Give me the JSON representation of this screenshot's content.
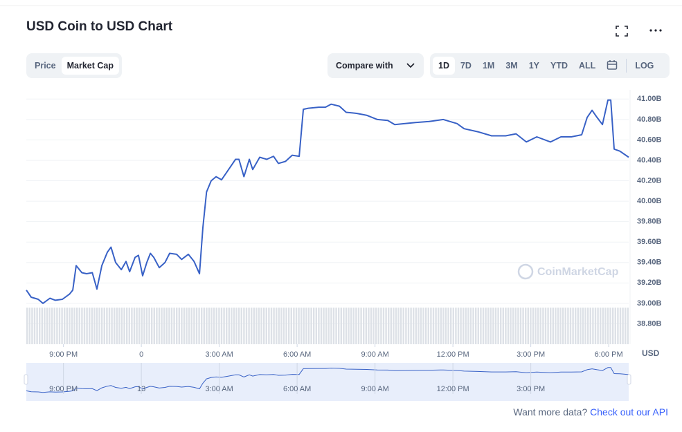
{
  "ui": {
    "tabs": [
      "Price",
      "Market Cap"
    ],
    "compare": "Compare with",
    "ranges": [
      "1D",
      "7D",
      "1M",
      "3M",
      "1Y",
      "YTD",
      "ALL"
    ],
    "log": "LOG",
    "watermark": "CoinMarketCap",
    "footer_text": "Want more data?",
    "footer_link": "Check out our API"
  },
  "chart_data": {
    "type": "line",
    "title": "USD Coin to USD Chart",
    "unit_label": "USD",
    "grid": true,
    "x": [
      -4.43,
      -4.24,
      -3.97,
      -3.79,
      -3.52,
      -3.31,
      -3.04,
      -2.77,
      -2.64,
      -2.51,
      -2.29,
      -2.11,
      -1.89,
      -1.71,
      -1.52,
      -1.31,
      -1.17,
      -0.99,
      -0.77,
      -0.59,
      -0.45,
      -0.24,
      -0.11,
      0.05,
      0.21,
      0.35,
      0.48,
      0.69,
      0.91,
      1.09,
      1.36,
      1.55,
      1.81,
      2.03,
      2.24,
      2.37,
      2.51,
      2.69,
      2.88,
      3.09,
      3.36,
      3.63,
      3.76,
      3.95,
      4.16,
      4.29,
      4.56,
      4.83,
      5.09,
      5.28,
      5.55,
      5.81,
      6.08,
      6.24,
      6.43,
      6.83,
      7.09,
      7.31,
      7.63,
      7.89,
      8.29,
      8.69,
      9.09,
      9.49,
      9.76,
      10.16,
      10.56,
      11.09,
      11.63,
      12.16,
      12.43,
      12.96,
      13.49,
      14.03,
      14.43,
      14.83,
      15.23,
      15.76,
      16.16,
      16.56,
      16.96,
      17.17,
      17.36,
      17.55,
      17.76,
      17.97,
      18.08,
      18.21,
      18.43,
      18.77
    ],
    "series": [
      {
        "name": "Market Cap",
        "color": "#3861c6",
        "values": [
          39.13,
          39.06,
          39.04,
          39.0,
          39.05,
          39.03,
          39.04,
          39.09,
          39.13,
          39.37,
          39.3,
          39.29,
          39.3,
          39.14,
          39.37,
          39.5,
          39.55,
          39.4,
          39.33,
          39.41,
          39.31,
          39.45,
          39.47,
          39.27,
          39.4,
          39.49,
          39.45,
          39.35,
          39.4,
          39.49,
          39.48,
          39.43,
          39.48,
          39.41,
          39.29,
          39.74,
          40.09,
          40.2,
          40.24,
          40.21,
          40.31,
          40.41,
          40.41,
          40.24,
          40.41,
          40.31,
          40.43,
          40.41,
          40.44,
          40.37,
          40.39,
          40.45,
          40.44,
          40.9,
          40.91,
          40.92,
          40.92,
          40.95,
          40.93,
          40.87,
          40.86,
          40.84,
          40.8,
          40.79,
          40.75,
          40.76,
          40.77,
          40.78,
          40.8,
          40.76,
          40.71,
          40.68,
          40.64,
          40.64,
          40.66,
          40.58,
          40.63,
          40.58,
          40.63,
          40.63,
          40.65,
          40.82,
          40.89,
          40.82,
          40.75,
          40.99,
          40.99,
          40.51,
          40.49,
          40.43
        ]
      }
    ],
    "xlim": [
      -4.43,
      18.77
    ],
    "xticks": [
      {
        "value": -3,
        "label": "9:00 PM"
      },
      0,
      {
        "value": 3,
        "label": "3:00 AM"
      },
      {
        "value": 6,
        "label": "6:00 AM"
      },
      {
        "value": 9,
        "label": "9:00 AM"
      },
      {
        "value": 12,
        "label": "12:00 PM"
      },
      {
        "value": 15,
        "label": "3:00 PM"
      },
      {
        "value": 18,
        "label": "6:00 PM"
      }
    ],
    "navigator_labels": [
      "9:00 PM",
      "13",
      "3:00 AM",
      "6:00 AM",
      "9:00 AM",
      "12:00 PM",
      "3:00 PM"
    ],
    "ylim": [
      38.6,
      41.09
    ],
    "yticks": [
      {
        "value": 41.0,
        "label": "41.00B"
      },
      {
        "value": 40.8,
        "label": "40.80B"
      },
      {
        "value": 40.6,
        "label": "40.60B"
      },
      {
        "value": 40.4,
        "label": "40.40B"
      },
      {
        "value": 40.2,
        "label": "40.20B"
      },
      {
        "value": 40.0,
        "label": "40.00B"
      },
      {
        "value": 39.8,
        "label": "39.80B"
      },
      {
        "value": 39.6,
        "label": "39.60B"
      },
      {
        "value": 39.4,
        "label": "39.40B"
      },
      {
        "value": 39.2,
        "label": "39.20B"
      },
      {
        "value": 39.0,
        "label": "39.00B"
      },
      {
        "value": 38.8,
        "label": "38.80B"
      }
    ]
  }
}
